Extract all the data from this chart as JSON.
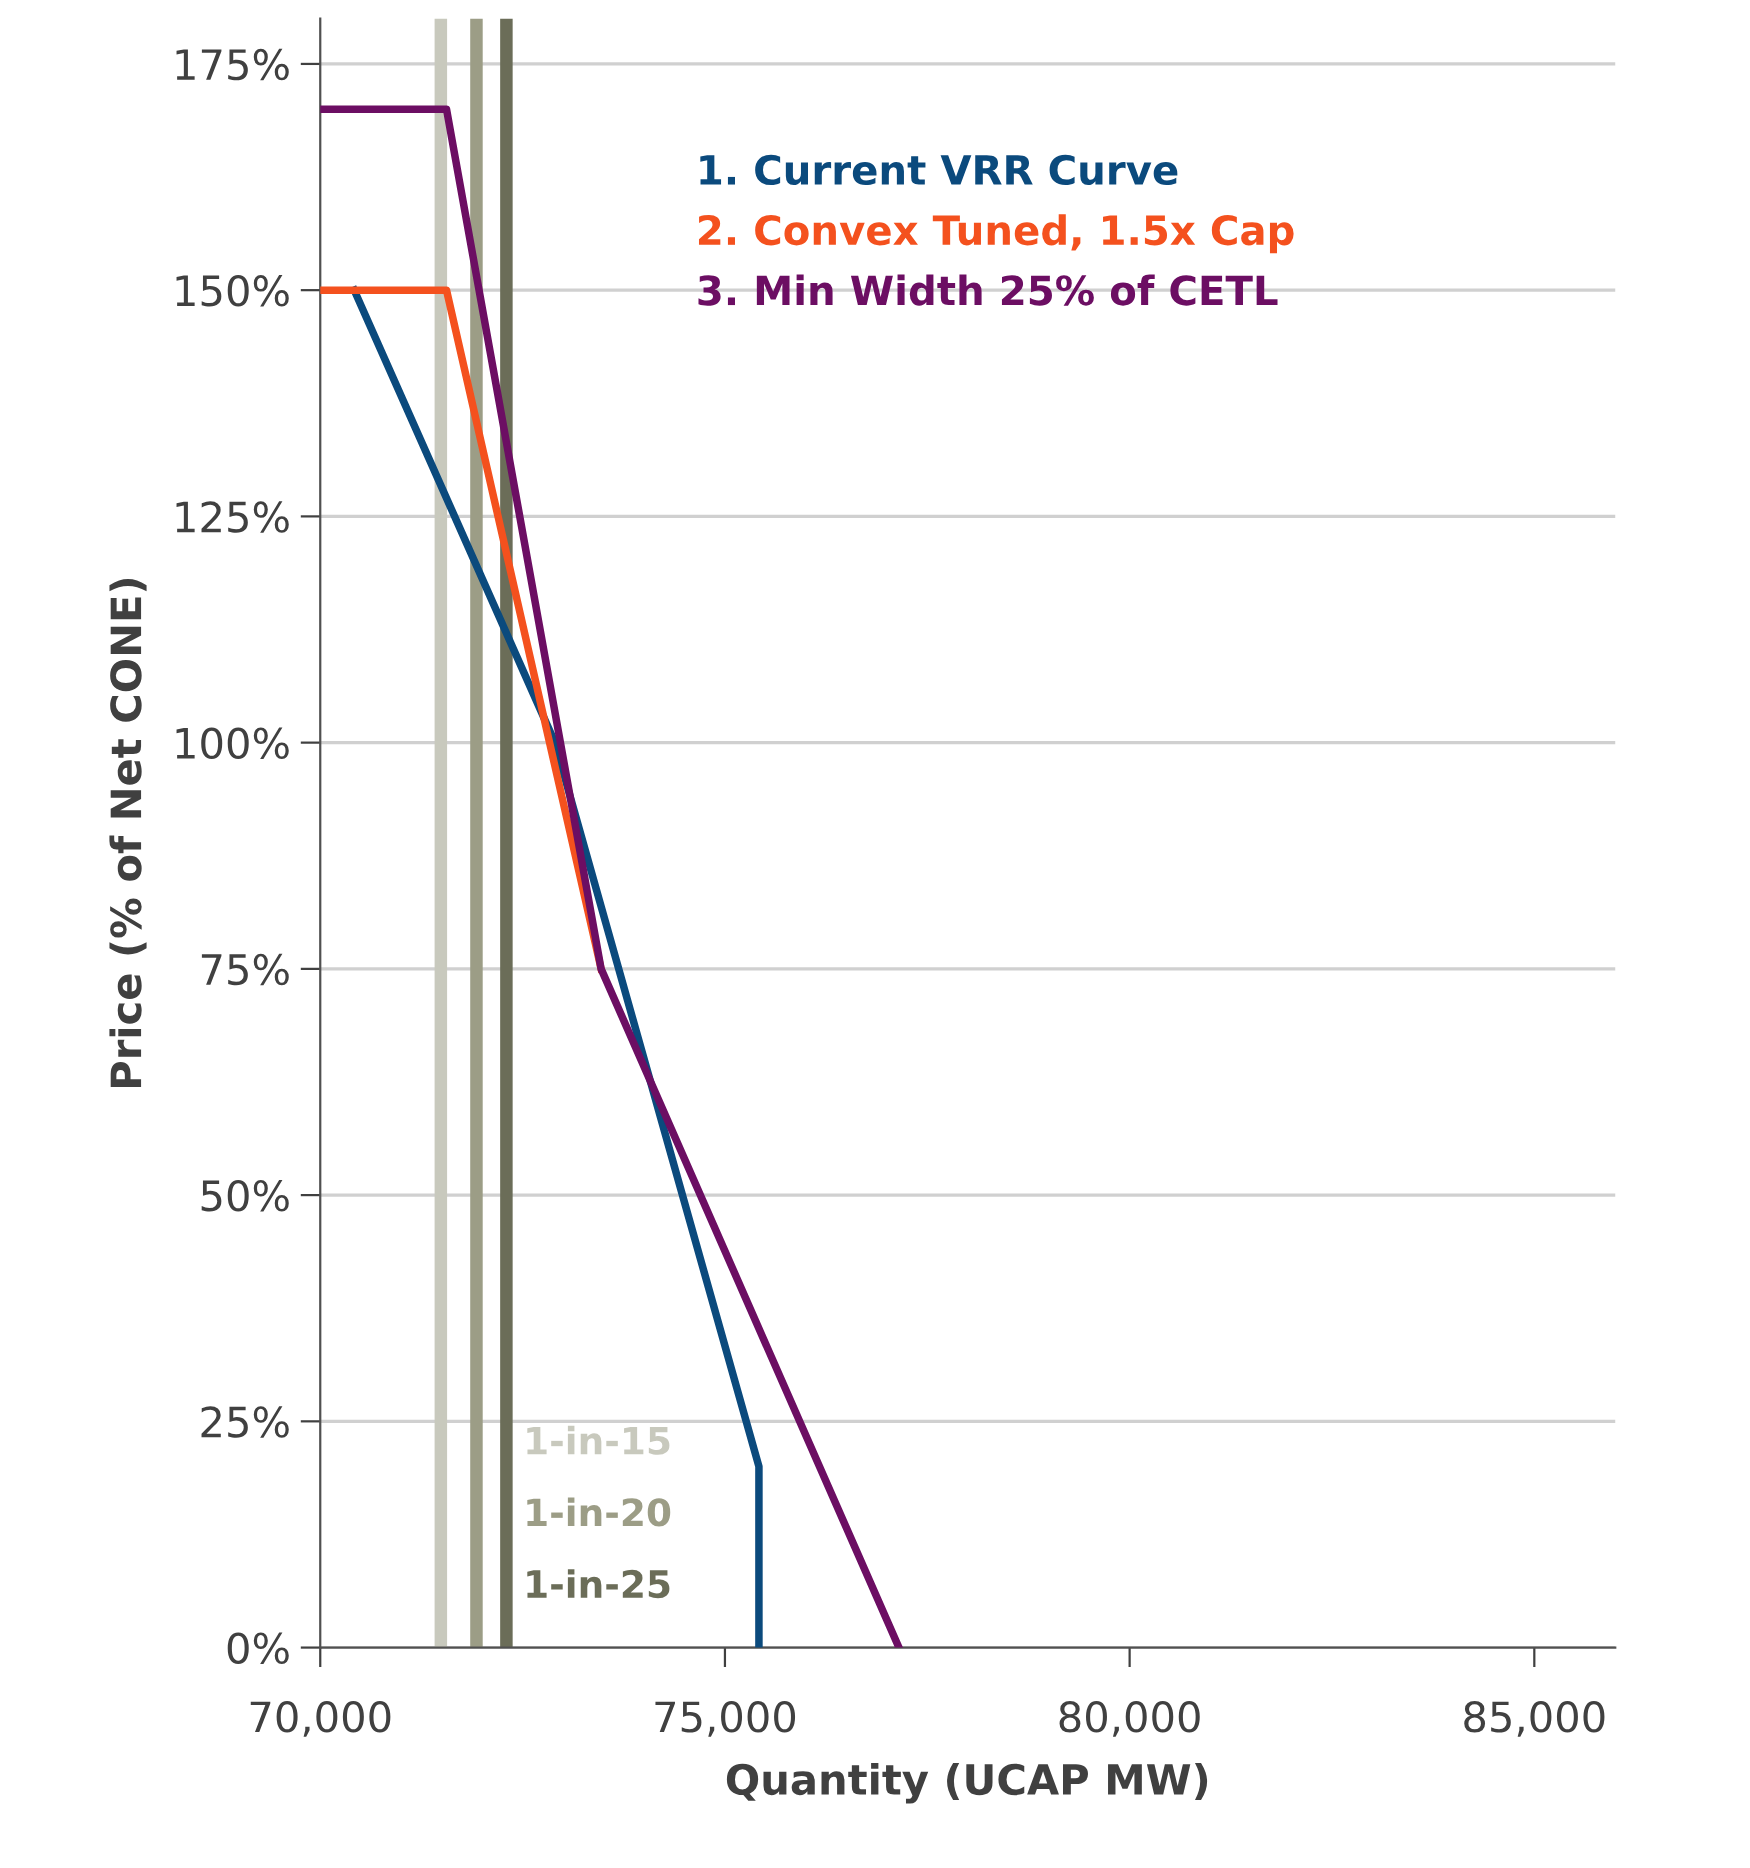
{
  "chart_data": {
    "type": "line",
    "xlabel": "Quantity (UCAP MW)",
    "ylabel": "Price (% of Net CONE)",
    "xlim": [
      70000,
      86000
    ],
    "xticks": [
      {
        "value": 70000,
        "label": "70,000"
      },
      {
        "value": 75000,
        "label": "75,000"
      },
      {
        "value": 80000,
        "label": "80,000"
      },
      {
        "value": 85000,
        "label": "85,000"
      }
    ],
    "ylim": [
      0,
      180
    ],
    "yticks": [
      {
        "value": 0,
        "label": "0%"
      },
      {
        "value": 25,
        "label": "25%"
      },
      {
        "value": 50,
        "label": "50%"
      },
      {
        "value": 75,
        "label": "75%"
      },
      {
        "value": 100,
        "label": "100%"
      },
      {
        "value": 125,
        "label": "125%"
      },
      {
        "value": 150,
        "label": "150%"
      },
      {
        "value": 175,
        "label": "175%"
      }
    ],
    "grid": "y",
    "marker": "none",
    "line_style": "solid",
    "series": [
      {
        "name": "1. Current VRR Curve",
        "color": "#0b4a7d",
        "x": [
          70420,
          72900,
          75420,
          75420
        ],
        "values": [
          150,
          100,
          20,
          0
        ]
      },
      {
        "name": "2. Convex Tuned, 1.5x Cap",
        "color": "#f4511e",
        "x": [
          70000,
          71560,
          73470
        ],
        "values": [
          150,
          150,
          75
        ]
      },
      {
        "name": "3. Min Width 25% of CETL",
        "color": "#6c0e63",
        "x": [
          70000,
          71560,
          73470,
          77150
        ],
        "values": [
          170,
          170,
          75,
          0
        ]
      }
    ],
    "ref_lines": [
      {
        "axis": "x",
        "value": 71490,
        "label": "1-in-15",
        "color": "#c8c9bd"
      },
      {
        "axis": "x",
        "value": 71930,
        "label": "1-in-20",
        "color": "#9c9d86"
      },
      {
        "axis": "x",
        "value": 72300,
        "label": "1-in-25",
        "color": "#6b6d58"
      }
    ]
  }
}
